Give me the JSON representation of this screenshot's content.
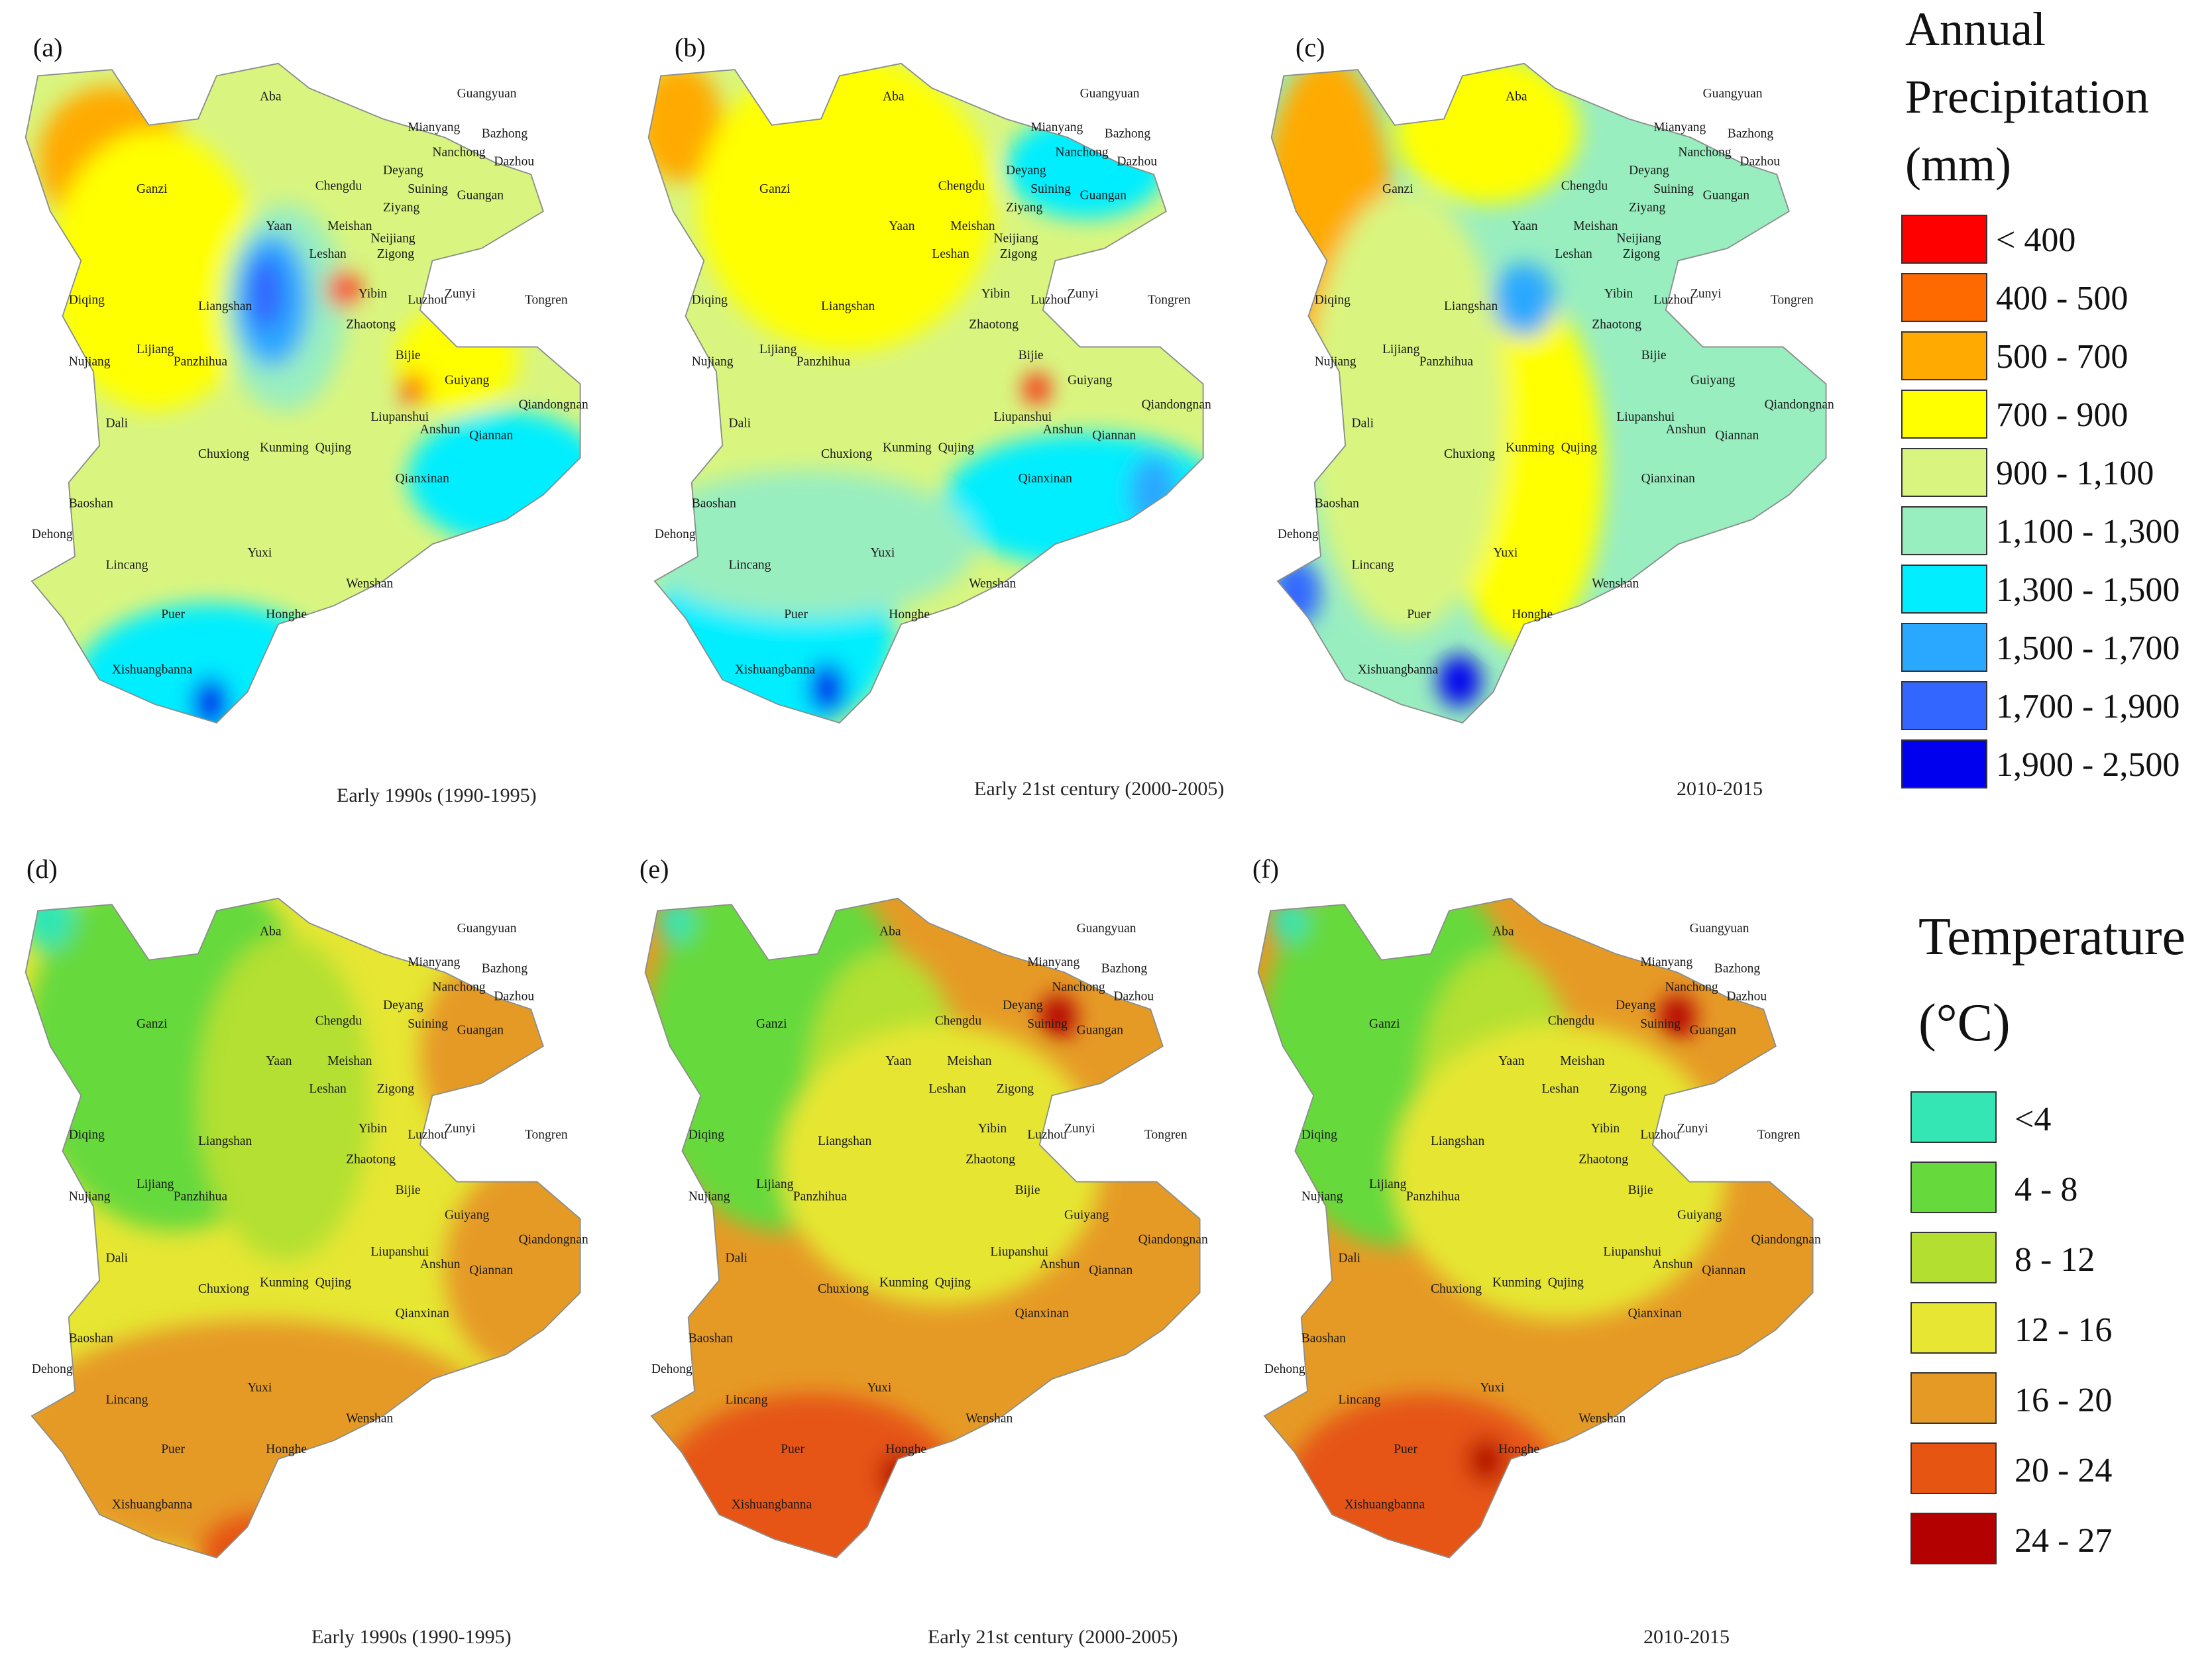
{
  "precipitation_legend": {
    "title_lines": [
      "Annual",
      "Precipitation",
      "(mm)"
    ],
    "classes": [
      {
        "label": "< 400",
        "color": "#ff0000"
      },
      {
        "label": "400 - 500",
        "color": "#ff6a00"
      },
      {
        "label": "500 - 700",
        "color": "#ffaa00"
      },
      {
        "label": "700 - 900",
        "color": "#ffff00"
      },
      {
        "label": "900 - 1,100",
        "color": "#d9f57f"
      },
      {
        "label": "1,100 - 1,300",
        "color": "#99eec0"
      },
      {
        "label": "1,300 - 1,500",
        "color": "#00eeff"
      },
      {
        "label": "1,500 - 1,700",
        "color": "#2aa8ff"
      },
      {
        "label": "1,700 - 1,900",
        "color": "#3366ff"
      },
      {
        "label": "1,900 - 2,500",
        "color": "#0000ee"
      }
    ]
  },
  "temperature_legend": {
    "title_lines": [
      "Temperature",
      "(°C)"
    ],
    "classes": [
      {
        "label": "<4",
        "color": "#33e6b3"
      },
      {
        "label": "4 - 8",
        "color": "#66d93d"
      },
      {
        "label": "8 - 12",
        "color": "#b3e030"
      },
      {
        "label": "12 - 16",
        "color": "#e6e633"
      },
      {
        "label": "16 - 20",
        "color": "#e69a26"
      },
      {
        "label": "20 - 24",
        "color": "#e65512"
      },
      {
        "label": "24 - 27",
        "color": "#b30000"
      }
    ]
  },
  "panels": [
    {
      "letter": "(a)",
      "caption": "Early 1990s (1990-1995)",
      "variable": "precipitation",
      "base_color": "#d9f57f"
    },
    {
      "letter": "(b)",
      "caption": "Early 21st century (2000-2005)",
      "variable": "precipitation",
      "base_color": "#d9f57f"
    },
    {
      "letter": "(c)",
      "caption": "2010-2015",
      "variable": "precipitation",
      "base_color": "#99eec0"
    },
    {
      "letter": "(d)",
      "caption": "Early 1990s (1990-1995)",
      "variable": "temperature",
      "base_color": "#e6e633"
    },
    {
      "letter": "(e)",
      "caption": "Early 21st century (2000-2005)",
      "variable": "temperature",
      "base_color": "#e69a26"
    },
    {
      "letter": "(f)",
      "caption": "2010-2015",
      "variable": "temperature",
      "base_color": "#e69a26"
    }
  ],
  "precipitation_cities": [
    "Aba",
    "Guangyuan",
    "Mianyang",
    "Bazhong",
    "Nanchong",
    "Dazhou",
    "Deyang",
    "Chengdu",
    "Suining",
    "Guangan",
    "Ziyang",
    "Ganzi",
    "Yaan",
    "Meishan",
    "Neijiang",
    "Zigong",
    "Leshan",
    "Yibin",
    "Zunyi",
    "Tongren",
    "Diqing",
    "Liangshan",
    "Zhaotong",
    "Luzhou",
    "Bijie",
    "Guiyang",
    "Qiandongnan",
    "Nujiang",
    "Lijiang",
    "Panzhihua",
    "Liupanshui",
    "Anshun",
    "Qiannan",
    "Dali",
    "Chuxiong",
    "Kunming",
    "Qujing",
    "Qianxinan",
    "Baoshan",
    "Dehong",
    "Lincang",
    "Yuxi",
    "Wenshan",
    "Puer",
    "Honghe",
    "Xishuangbanna"
  ],
  "temperature_cities": [
    "Aba",
    "Guangyuan",
    "Mianyang",
    "Bazhong",
    "Dazhou",
    "Nanchong",
    "Deyang",
    "Chengdu",
    "Suining",
    "Guangan",
    "Ganzi",
    "Yaan",
    "Meishan",
    "Leshan",
    "Zigong",
    "Yibin",
    "Luzhou",
    "Zunyi",
    "Tongren",
    "Diqing",
    "Liangshan",
    "Zhaotong",
    "Bijie",
    "Guiyang",
    "Qiandongnan",
    "Nujiang",
    "Lijiang",
    "Panzhihua",
    "Liupanshui",
    "Anshun",
    "Qiannan",
    "Dali",
    "Kunming",
    "Chuxiong",
    "Qujing",
    "Qianxinan",
    "Baoshan",
    "Dehong",
    "Lincang",
    "Yuxi",
    "Wenshan",
    "Puer",
    "Honghe",
    "Xishuangbanna"
  ],
  "zones": {
    "a": [
      {
        "cls": 2,
        "rx": 0.04,
        "ry": 0.08,
        "w": 0.24,
        "h": 0.2
      },
      {
        "cls": 3,
        "rx": 0.06,
        "ry": 0.14,
        "w": 0.34,
        "h": 0.38
      },
      {
        "cls": 3,
        "rx": 0.62,
        "ry": 0.38,
        "w": 0.2,
        "h": 0.14
      },
      {
        "cls": 6,
        "rx": 0.1,
        "ry": 0.78,
        "w": 0.44,
        "h": 0.22
      },
      {
        "cls": 6,
        "rx": 0.64,
        "ry": 0.52,
        "w": 0.32,
        "h": 0.18
      },
      {
        "cls": 5,
        "rx": 0.34,
        "ry": 0.24,
        "w": 0.2,
        "h": 0.28
      },
      {
        "cls": 7,
        "rx": 0.36,
        "ry": 0.28,
        "w": 0.12,
        "h": 0.18
      },
      {
        "cls": 8,
        "rx": 0.38,
        "ry": 0.31,
        "w": 0.06,
        "h": 0.1
      },
      {
        "cls": 0,
        "rx": 0.51,
        "ry": 0.33,
        "w": 0.05,
        "h": 0.05
      },
      {
        "cls": 0,
        "rx": 0.63,
        "ry": 0.47,
        "w": 0.04,
        "h": 0.04
      },
      {
        "cls": 9,
        "rx": 0.29,
        "ry": 0.88,
        "w": 0.06,
        "h": 0.07
      }
    ],
    "b": [
      {
        "cls": 2,
        "rx": 0.0,
        "ry": 0.05,
        "w": 0.14,
        "h": 0.16
      },
      {
        "cls": 3,
        "rx": 0.1,
        "ry": 0.04,
        "w": 0.48,
        "h": 0.4
      },
      {
        "cls": 6,
        "rx": 0.6,
        "ry": 0.12,
        "w": 0.26,
        "h": 0.14
      },
      {
        "cls": 6,
        "rx": 0.5,
        "ry": 0.55,
        "w": 0.46,
        "h": 0.18
      },
      {
        "cls": 6,
        "rx": 0.02,
        "ry": 0.68,
        "w": 0.4,
        "h": 0.28
      },
      {
        "cls": 5,
        "rx": 0.0,
        "ry": 0.6,
        "w": 0.55,
        "h": 0.2
      },
      {
        "cls": 7,
        "rx": 0.8,
        "ry": 0.58,
        "w": 0.08,
        "h": 0.1
      },
      {
        "cls": 9,
        "rx": 0.28,
        "ry": 0.86,
        "w": 0.06,
        "h": 0.07
      },
      {
        "cls": 0,
        "rx": 0.63,
        "ry": 0.47,
        "w": 0.04,
        "h": 0.04
      }
    ],
    "c": [
      {
        "cls": 2,
        "rx": 0.0,
        "ry": 0.04,
        "w": 0.22,
        "h": 0.5
      },
      {
        "cls": 3,
        "rx": 0.22,
        "ry": 0.04,
        "w": 0.3,
        "h": 0.2
      },
      {
        "cls": 3,
        "rx": 0.3,
        "ry": 0.36,
        "w": 0.26,
        "h": 0.48
      },
      {
        "cls": 4,
        "rx": 0.08,
        "ry": 0.22,
        "w": 0.32,
        "h": 0.6
      },
      {
        "cls": 7,
        "rx": 0.38,
        "ry": 0.32,
        "w": 0.1,
        "h": 0.1
      },
      {
        "cls": 8,
        "rx": 0.01,
        "ry": 0.48,
        "w": 0.06,
        "h": 0.08
      },
      {
        "cls": 8,
        "rx": 0.02,
        "ry": 0.72,
        "w": 0.08,
        "h": 0.09
      },
      {
        "cls": 9,
        "rx": 0.29,
        "ry": 0.85,
        "w": 0.07,
        "h": 0.07
      }
    ],
    "d": [
      {
        "cls": 1,
        "rx": 0.02,
        "ry": 0.0,
        "w": 0.48,
        "h": 0.5
      },
      {
        "cls": 2,
        "rx": 0.3,
        "ry": 0.1,
        "w": 0.28,
        "h": 0.44
      },
      {
        "cls": 4,
        "rx": 0.66,
        "ry": 0.12,
        "w": 0.26,
        "h": 0.28
      },
      {
        "cls": 4,
        "rx": 0.7,
        "ry": 0.4,
        "w": 0.3,
        "h": 0.3
      },
      {
        "cls": 4,
        "rx": 0.0,
        "ry": 0.62,
        "w": 0.8,
        "h": 0.32
      },
      {
        "cls": 5,
        "rx": 0.3,
        "ry": 0.88,
        "w": 0.18,
        "h": 0.12
      },
      {
        "cls": 0,
        "rx": 0.01,
        "ry": 0.03,
        "w": 0.09,
        "h": 0.09
      }
    ],
    "e": [
      {
        "cls": 1,
        "rx": 0.02,
        "ry": 0.0,
        "w": 0.44,
        "h": 0.5
      },
      {
        "cls": 2,
        "rx": 0.28,
        "ry": 0.12,
        "w": 0.26,
        "h": 0.4
      },
      {
        "cls": 3,
        "rx": 0.24,
        "ry": 0.22,
        "w": 0.52,
        "h": 0.38
      },
      {
        "cls": 5,
        "rx": 0.04,
        "ry": 0.72,
        "w": 0.5,
        "h": 0.28
      },
      {
        "cls": 6,
        "rx": 0.66,
        "ry": 0.18,
        "w": 0.06,
        "h": 0.06
      },
      {
        "cls": 6,
        "rx": 0.4,
        "ry": 0.8,
        "w": 0.06,
        "h": 0.06
      },
      {
        "cls": 0,
        "rx": 0.04,
        "ry": 0.05,
        "w": 0.06,
        "h": 0.06
      }
    ],
    "f": [
      {
        "cls": 1,
        "rx": 0.02,
        "ry": 0.0,
        "w": 0.44,
        "h": 0.52
      },
      {
        "cls": 2,
        "rx": 0.28,
        "ry": 0.12,
        "w": 0.26,
        "h": 0.4
      },
      {
        "cls": 3,
        "rx": 0.24,
        "ry": 0.22,
        "w": 0.54,
        "h": 0.4
      },
      {
        "cls": 5,
        "rx": 0.06,
        "ry": 0.72,
        "w": 0.46,
        "h": 0.28
      },
      {
        "cls": 6,
        "rx": 0.67,
        "ry": 0.18,
        "w": 0.06,
        "h": 0.06
      },
      {
        "cls": 6,
        "rx": 0.36,
        "ry": 0.78,
        "w": 0.06,
        "h": 0.06
      },
      {
        "cls": 0,
        "rx": 0.04,
        "ry": 0.05,
        "w": 0.06,
        "h": 0.06
      }
    ]
  }
}
